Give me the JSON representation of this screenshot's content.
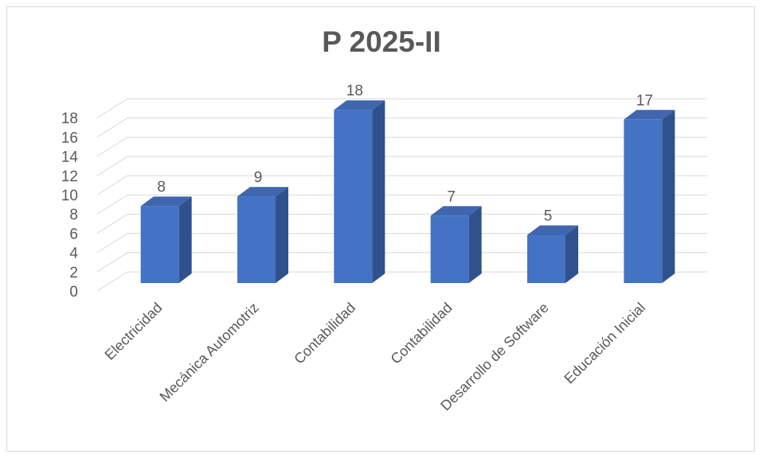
{
  "chart_data": {
    "type": "bar",
    "title": "P 2025-II",
    "categories": [
      "Electricidad",
      "Mecánica Automotriz",
      "Contabilidad",
      "Contabilidad",
      "Desarrollo de Software",
      "Educación Inicial"
    ],
    "values": [
      8,
      9,
      18,
      7,
      5,
      17
    ],
    "ylim": [
      0,
      18
    ],
    "yticks": [
      0,
      2,
      4,
      6,
      8,
      10,
      12,
      14,
      16,
      18
    ],
    "ytick_labels": [
      "0",
      "2",
      "4",
      "6",
      "8",
      "10",
      "12",
      "14",
      "16",
      "18"
    ],
    "xlabel": "",
    "ylabel": "",
    "grid": true,
    "legend": "none",
    "style": "3d-column",
    "colors": {
      "bar_front": "#4472c4",
      "bar_side": "#2f528f",
      "bar_top": "#3f66ae",
      "grid": "#d9d9d9",
      "text": "#595959"
    }
  }
}
